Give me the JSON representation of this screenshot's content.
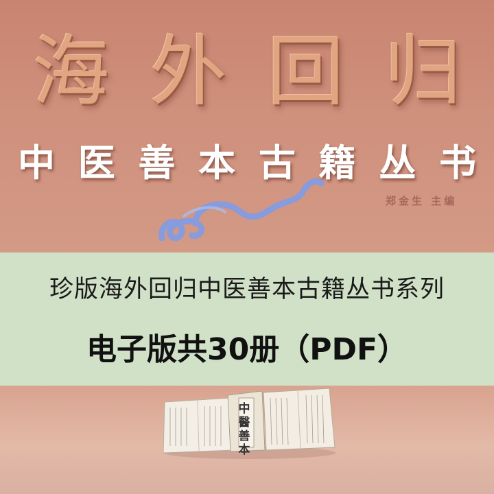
{
  "cover": {
    "main_title_chars": [
      "海",
      "外",
      "回",
      "归"
    ],
    "subtitle_chars": [
      "中",
      "医",
      "善",
      "本",
      "古",
      "籍",
      "丛",
      "书"
    ],
    "editor": "郑金生  主编"
  },
  "banner": {
    "line1": "珍版海外回归中医善本古籍丛书系列",
    "line2": "电子版共30册（PDF）"
  },
  "book_image": {
    "cover_label": "中醫善本"
  },
  "colors": {
    "background": "#c98a76",
    "banner": "#d0e1c7",
    "title_gold": "#e2a582",
    "cloud_blue": "#7f9be6"
  }
}
